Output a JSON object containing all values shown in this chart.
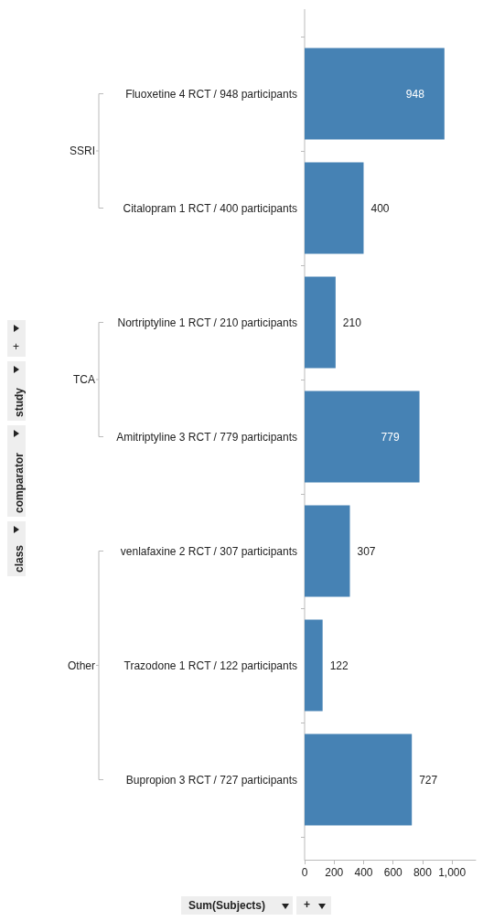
{
  "chart_data": {
    "type": "bar",
    "orientation": "horizontal",
    "xlabel": "Sum(Subjects)",
    "categories": [
      "Fluoxetine 4 RCT / 948 participants",
      "Citalopram 1 RCT / 400 participants",
      "Nortriptyline 1 RCT / 210 participants",
      "Amitriptyline 3 RCT / 779 participants",
      "venlafaxine 2 RCT / 307 participants",
      "Trazodone 1 RCT / 122 participants",
      "Bupropion 3 RCT / 727 participants"
    ],
    "values": [
      948,
      400,
      210,
      779,
      307,
      122,
      727
    ],
    "color": "#4682b4",
    "xlim": [
      0,
      1160
    ],
    "xticks": [
      0,
      200,
      400,
      600,
      800,
      {
        "value": 1000,
        "label": "1,000"
      }
    ],
    "data_labels": true,
    "grid": false,
    "annotations": [
      "SSRI",
      "TCA",
      "Other",
      "class",
      "comparator",
      "study",
      "+",
      "+"
    ]
  }
}
